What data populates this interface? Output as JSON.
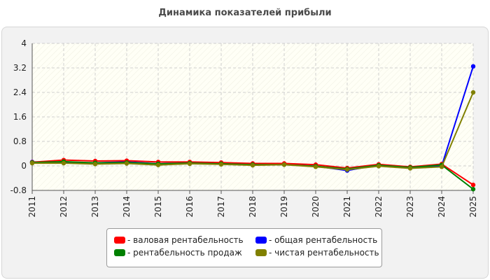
{
  "chart_data": {
    "type": "line",
    "title": "Динамика показателей прибыли",
    "categories": [
      "2011",
      "2012",
      "2013",
      "2014",
      "2015",
      "2016",
      "2017",
      "2018",
      "2019",
      "2020",
      "2021",
      "2022",
      "2023",
      "2024",
      "2025"
    ],
    "ylim": [
      -0.8,
      4
    ],
    "yticks": [
      "4",
      "3.2",
      "2.4",
      "1.6",
      "0.8",
      "0",
      "-0.8"
    ],
    "grid": true,
    "legend_position": "bottom",
    "series": [
      {
        "name": "- валовая рентабельность",
        "color": "#ff0000",
        "values": [
          0.12,
          0.19,
          0.16,
          0.17,
          0.13,
          0.13,
          0.11,
          0.08,
          0.08,
          0.04,
          -0.07,
          0.05,
          -0.03,
          0.06,
          -0.62
        ]
      },
      {
        "name": "- общая рентабельность",
        "color": "#0000ff",
        "values": [
          0.13,
          0.12,
          0.1,
          0.13,
          0.07,
          0.1,
          0.08,
          0.05,
          0.05,
          -0.01,
          -0.15,
          0.03,
          -0.07,
          0.0,
          3.25
        ]
      },
      {
        "name": "- рентабельность продаж",
        "color": "#008000",
        "values": [
          0.11,
          0.14,
          0.1,
          0.11,
          0.07,
          0.09,
          0.07,
          0.04,
          0.04,
          -0.01,
          -0.1,
          0.02,
          -0.05,
          0.03,
          -0.76
        ]
      },
      {
        "name": "- чистая рентабельность",
        "color": "#808000",
        "values": [
          0.09,
          0.09,
          0.06,
          0.08,
          0.03,
          0.07,
          0.05,
          0.02,
          0.04,
          -0.03,
          -0.12,
          -0.01,
          -0.08,
          -0.03,
          2.4
        ]
      }
    ]
  }
}
